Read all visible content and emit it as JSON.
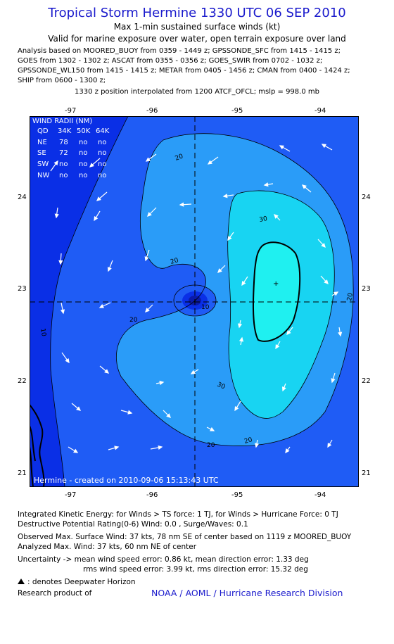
{
  "header": {
    "title": "Tropical Storm Hermine 1330 UTC 06 SEP 2010",
    "subtitle": "Max 1-min sustained surface winds (kt)",
    "validity": "Valid for marine exposure over water, open terrain exposure over land"
  },
  "analysis_lines": [
    "Analysis based on MOORED_BUOY from 0359 - 1449 z; GPSSONDE_SFC from 1415 - 1415 z;",
    "GOES from 1302 - 1302 z; ASCAT from 0355 - 0356 z; GOES_SWIR from 0702 - 1032 z;",
    "GPSSONDE_WL150 from 1415 - 1415 z; METAR from 0405 - 1456 z; CMAN from 0400 - 1424 z;",
    "SHIP from 0600 - 1300 z;"
  ],
  "position_note": "1330 z position interpolated from 1200 ATCF_OFCL; mslp = 998.0 mb",
  "axes": {
    "lon_ticks": [
      "-97",
      "-96",
      "-95",
      "-94"
    ],
    "lat_ticks": [
      "24",
      "23",
      "22",
      "21"
    ]
  },
  "wind_radii": {
    "title": "WIND RADII (NM)",
    "header": [
      "QD",
      "34K",
      "50K",
      "64K"
    ],
    "rows": [
      [
        "NE",
        "78",
        "no",
        "no"
      ],
      [
        "SE",
        "72",
        "no",
        "no"
      ],
      [
        "SW",
        "no",
        "no",
        "no"
      ],
      [
        "NW",
        "no",
        "no",
        "no"
      ]
    ]
  },
  "contour_labels": [
    "20",
    "20",
    "20",
    "20",
    "20",
    "20",
    "30",
    "30",
    "10",
    "10"
  ],
  "map_footer": "Hermine - created on 2010-09-06 15:13:43 UTC",
  "colors": {
    "title_blue": "#1a1acc",
    "level_lt10": "#0a2fe6",
    "level_10_20": "#1f5cf5",
    "level_20_30": "#2a9cf8",
    "level_30_35": "#18d4f2",
    "level_gt35": "#1ff0f0",
    "center_dark": "#0a1aa8"
  },
  "footer": {
    "ike": "Integrated Kinetic Energy:  for Winds > TS force: 1 TJ,  for Winds > Hurricane Force: 0 TJ",
    "dpr": "Destructive Potential Rating(0-6)   Wind: 0.0 , Surge/Waves: 0.1",
    "observed": "Observed Max. Surface Wind: 37 kts, 78 nm SE of center based on 1119 z MOORED_BUOY",
    "analyzed": "Analyzed Max. Wind: 37 kts, 60 nm NE of center",
    "uncertainty1": "Uncertainty -> mean wind speed error: 0.86 kt,   mean direction error: 1.33 deg",
    "uncertainty2": "rms wind speed error: 3.99 kt,   rms direction error: 15.32 deg",
    "deepwater": ": denotes Deepwater Horizon",
    "research": "Research product of",
    "org": "NOAA / AOML / Hurricane Research Division"
  }
}
